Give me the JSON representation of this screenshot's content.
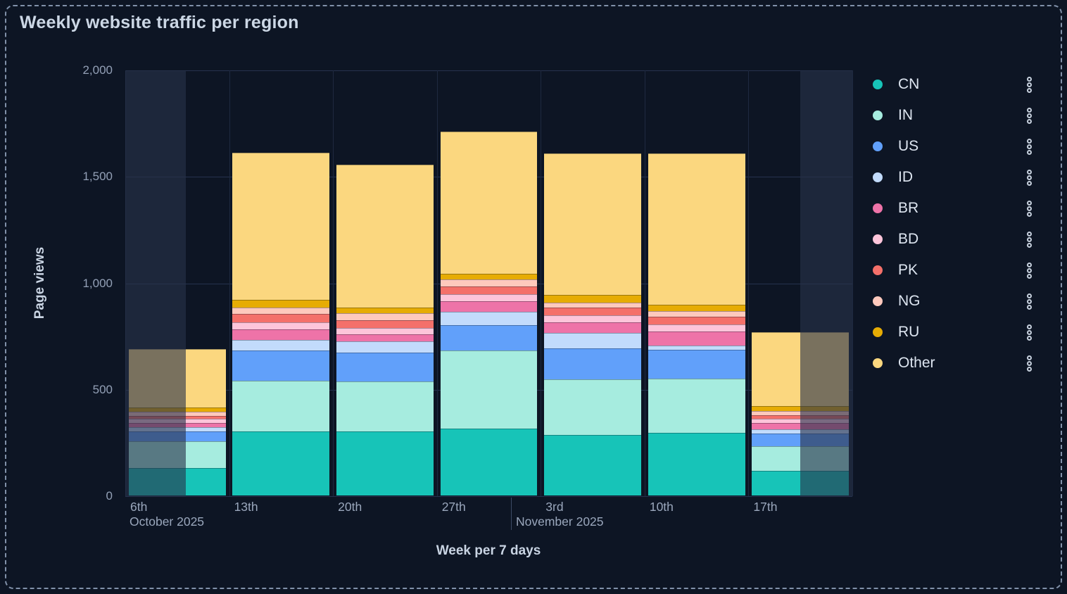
{
  "ui": {
    "panel_title": "Weekly website traffic per region",
    "legend_menu_icon": "kebab-menu-icon"
  },
  "chart_data": {
    "type": "bar",
    "stacked": true,
    "title": "Weekly website traffic per region",
    "xlabel": "Week per 7 days",
    "ylabel": "Page views",
    "ylim": [
      0,
      2000
    ],
    "ytick_values": [
      0,
      500,
      1000,
      1500,
      2000
    ],
    "ytick_labels": [
      "0",
      "500",
      "1,000",
      "1,500",
      "2,000"
    ],
    "grid": true,
    "legend_position": "right",
    "categories": [
      "6th",
      "13th",
      "20th",
      "27th",
      "3rd",
      "10th",
      "17th"
    ],
    "month_labels": [
      "October 2025",
      "November 2025"
    ],
    "partial_weeks_dimmed": [
      "6th",
      "17th"
    ],
    "series": [
      {
        "name": "CN",
        "color": "#17c4b8",
        "values": [
          130,
          300,
          300,
          315,
          285,
          295,
          115
        ]
      },
      {
        "name": "IN",
        "color": "#a6ecdf",
        "values": [
          125,
          240,
          235,
          365,
          260,
          255,
          115
        ]
      },
      {
        "name": "US",
        "color": "#61a0fa",
        "values": [
          45,
          140,
          135,
          120,
          145,
          135,
          60
        ]
      },
      {
        "name": "ID",
        "color": "#c2dbfc",
        "values": [
          22,
          50,
          53,
          63,
          73,
          20,
          20
        ]
      },
      {
        "name": "BR",
        "color": "#ee73a8",
        "values": [
          20,
          50,
          33,
          50,
          50,
          67,
          30
        ]
      },
      {
        "name": "BD",
        "color": "#fdc5da",
        "values": [
          17,
          33,
          30,
          33,
          33,
          33,
          20
        ]
      },
      {
        "name": "PK",
        "color": "#f4706a",
        "values": [
          16,
          40,
          37,
          36,
          37,
          36,
          16
        ]
      },
      {
        "name": "NG",
        "color": "#fec9bd",
        "values": [
          17,
          30,
          33,
          34,
          23,
          27,
          20
        ]
      },
      {
        "name": "RU",
        "color": "#e6ac04",
        "values": [
          20,
          37,
          27,
          25,
          37,
          27,
          25
        ]
      },
      {
        "name": "Other",
        "color": "#fbd77f",
        "values": [
          275,
          690,
          670,
          668,
          664,
          713,
          345
        ]
      }
    ]
  }
}
